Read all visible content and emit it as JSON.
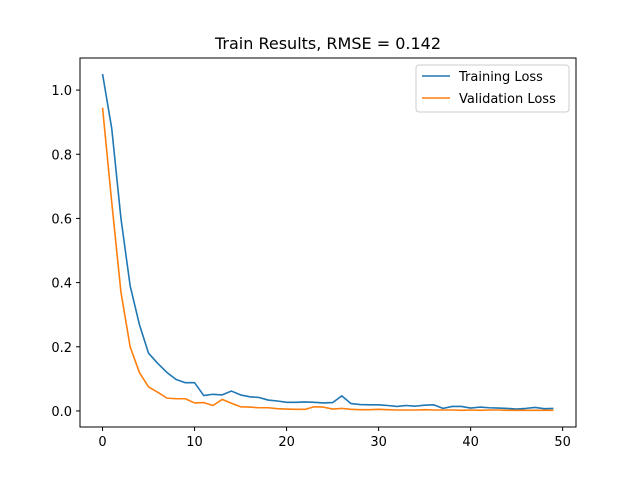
{
  "chart_data": {
    "type": "line",
    "title": "Train Results, RMSE = 0.142",
    "xlabel": "",
    "ylabel": "",
    "xlim": [
      -2.45,
      51.45
    ],
    "ylim": [
      -0.05,
      1.1
    ],
    "xticks": [
      0,
      10,
      20,
      30,
      40,
      50
    ],
    "yticks": [
      0.0,
      0.2,
      0.4,
      0.6,
      0.8,
      1.0
    ],
    "ytick_labels": [
      "0.0",
      "0.2",
      "0.4",
      "0.6",
      "0.8",
      "1.0"
    ],
    "grid": false,
    "legend_position": "top-right",
    "x": [
      0,
      1,
      2,
      3,
      4,
      5,
      6,
      7,
      8,
      9,
      10,
      11,
      12,
      13,
      14,
      15,
      16,
      17,
      18,
      19,
      20,
      21,
      22,
      23,
      24,
      25,
      26,
      27,
      28,
      29,
      30,
      31,
      32,
      33,
      34,
      35,
      36,
      37,
      38,
      39,
      40,
      41,
      42,
      43,
      44,
      45,
      46,
      47,
      48,
      49
    ],
    "series": [
      {
        "name": "Training Loss",
        "color": "#1f77b4",
        "values": [
          1.05,
          0.88,
          0.6,
          0.39,
          0.27,
          0.18,
          0.148,
          0.12,
          0.098,
          0.088,
          0.088,
          0.048,
          0.052,
          0.05,
          0.062,
          0.05,
          0.044,
          0.042,
          0.034,
          0.031,
          0.027,
          0.027,
          0.028,
          0.027,
          0.025,
          0.026,
          0.047,
          0.023,
          0.02,
          0.019,
          0.019,
          0.017,
          0.014,
          0.017,
          0.015,
          0.018,
          0.019,
          0.008,
          0.014,
          0.014,
          0.009,
          0.012,
          0.01,
          0.009,
          0.008,
          0.006,
          0.008,
          0.011,
          0.007,
          0.008
        ]
      },
      {
        "name": "Validation Loss",
        "color": "#ff7f0e",
        "values": [
          0.945,
          0.65,
          0.37,
          0.2,
          0.12,
          0.075,
          0.058,
          0.04,
          0.038,
          0.038,
          0.025,
          0.026,
          0.017,
          0.036,
          0.024,
          0.013,
          0.012,
          0.01,
          0.01,
          0.007,
          0.006,
          0.005,
          0.005,
          0.013,
          0.012,
          0.006,
          0.008,
          0.005,
          0.004,
          0.004,
          0.005,
          0.004,
          0.003,
          0.003,
          0.003,
          0.004,
          0.003,
          0.003,
          0.003,
          0.002,
          0.003,
          0.002,
          0.003,
          0.003,
          0.002,
          0.002,
          0.002,
          0.002,
          0.002,
          0.002
        ]
      }
    ]
  }
}
